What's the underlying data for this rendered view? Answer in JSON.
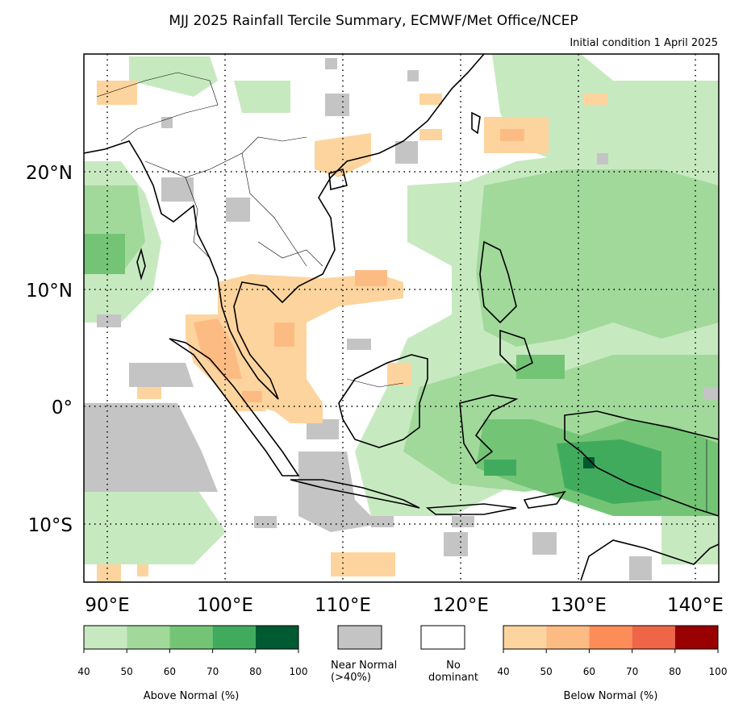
{
  "title": "MJJ 2025 Rainfall Tercile Summary, ECMWF/Met Office/NCEP",
  "subtitle": "Initial condition 1 April 2025",
  "map": {
    "lon_range": [
      88,
      142
    ],
    "lat_range": [
      -15,
      30
    ],
    "lon_ticks": [
      "90°E",
      "100°E",
      "110°E",
      "120°E",
      "130°E",
      "140°E"
    ],
    "lat_ticks": [
      "20°N",
      "10°N",
      "0°",
      "10°S"
    ],
    "gridlines": true
  },
  "legend": {
    "above": {
      "title": "Above Normal (%)",
      "ticks": [
        "40",
        "50",
        "60",
        "70",
        "80",
        "100"
      ],
      "colors": [
        "#c7e9c0",
        "#a1d99b",
        "#74c476",
        "#41ab5d",
        "#005a32"
      ]
    },
    "near": {
      "label_line1": "Near Normal",
      "label_line2": "(>40%)",
      "color": "#c4c4c4"
    },
    "none": {
      "label_line1": "No",
      "label_line2": "dominant",
      "color": "#ffffff"
    },
    "below": {
      "title": "Below Normal (%)",
      "ticks": [
        "40",
        "50",
        "60",
        "70",
        "80",
        "100"
      ],
      "colors": [
        "#fdd49e",
        "#fdbb84",
        "#fc8d59",
        "#ef6548",
        "#990000"
      ]
    }
  }
}
